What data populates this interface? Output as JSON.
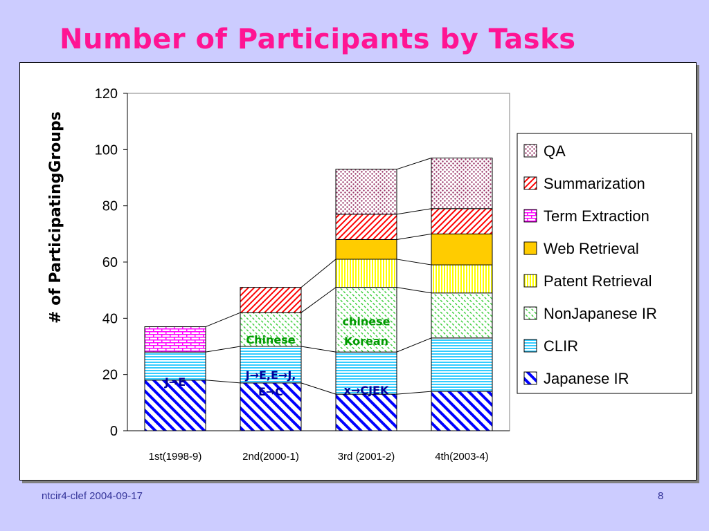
{
  "slide": {
    "title": "Number of Participants by Tasks",
    "footer_left": "ntcir4-clef  2004-09-17",
    "footer_right": "8"
  },
  "chart_data": {
    "type": "bar",
    "stacked": true,
    "title": "",
    "xlabel": "",
    "ylabel": "# of ParticipatingGroups",
    "ylim": [
      0,
      120
    ],
    "yticks": [
      0,
      20,
      40,
      60,
      80,
      100,
      120
    ],
    "grid": false,
    "legend_position": "right",
    "categories": [
      "1st(1998-9)",
      "2nd(2000-1)",
      "3rd (2001-2)",
      "4th(2003-4)"
    ],
    "series": [
      {
        "name": "Japanese IR",
        "values": [
          18,
          17,
          13,
          14
        ],
        "color": "#0000ff",
        "pattern": "diagonal-stripes"
      },
      {
        "name": "CLIR",
        "values": [
          10,
          13,
          15,
          19
        ],
        "color": "#33ccff",
        "pattern": "horizontal-stripes"
      },
      {
        "name": "NonJapanese IR",
        "values": [
          0,
          12,
          23,
          16
        ],
        "color": "#33cc33",
        "pattern": "dashed-diagonal"
      },
      {
        "name": "Patent Retrieval",
        "values": [
          0,
          0,
          10,
          10
        ],
        "color": "#ffff00",
        "pattern": "vertical-stripes"
      },
      {
        "name": "Web Retrieval",
        "values": [
          0,
          0,
          7,
          11
        ],
        "color": "#ffcc00",
        "pattern": "solid"
      },
      {
        "name": "Term Extraction",
        "values": [
          9,
          0,
          0,
          0
        ],
        "color": "#ff00ff",
        "pattern": "brick"
      },
      {
        "name": "Summarization",
        "values": [
          0,
          9,
          9,
          9
        ],
        "color": "#ff0000",
        "pattern": "back-diagonal"
      },
      {
        "name": "QA",
        "values": [
          0,
          0,
          16,
          18
        ],
        "color": "#993366",
        "pattern": "dots"
      }
    ],
    "legend_order": [
      "QA",
      "Summarization",
      "Term Extraction",
      "Web Retrieval",
      "Patent Retrieval",
      "NonJapanese IR",
      "CLIR",
      "Japanese IR"
    ],
    "annotations": [
      {
        "text": "J→E",
        "category": 0,
        "y": 16,
        "color": "#000099"
      },
      {
        "text": "J→E,E→J,",
        "category": 1,
        "y": 18.5,
        "color": "#000099"
      },
      {
        "text": "E→C",
        "category": 1,
        "y": 12.5,
        "color": "#000099"
      },
      {
        "text": "Chinese",
        "category": 1,
        "y": 31,
        "color": "#009900"
      },
      {
        "text": "chinese",
        "category": 2,
        "y": 37.5,
        "color": "#009900"
      },
      {
        "text": "Korean",
        "category": 2,
        "y": 30.5,
        "color": "#009900"
      },
      {
        "text": "x→CJEK",
        "category": 2,
        "y": 13,
        "color": "#000099"
      }
    ]
  }
}
